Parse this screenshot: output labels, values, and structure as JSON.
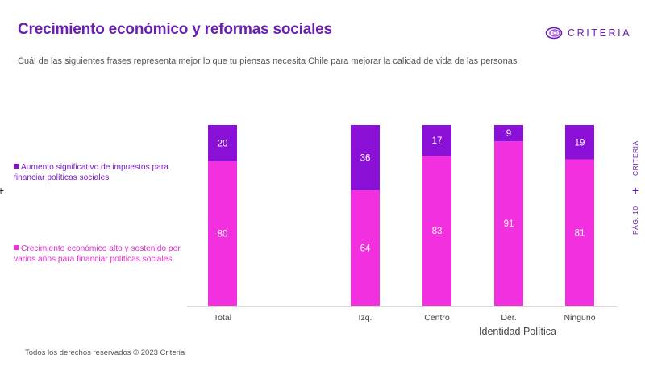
{
  "header": {
    "title": "Crecimiento económico y reformas sociales",
    "subtitle": "Cuál de las siguientes frases representa mejor lo que tu piensas necesita Chile para mejorar la calidad de vida de las personas"
  },
  "brand": {
    "logo_text": "CRITERIA",
    "color": "#6b1fb1"
  },
  "side": {
    "brand": "CRITERIA",
    "page": "PÁG. 10"
  },
  "footer": {
    "text": "Todos los derechos reservados © 2023 Criteria"
  },
  "chart_data": {
    "type": "bar",
    "stacked": true,
    "categories": [
      "Total",
      "Izq.",
      "Centro",
      "Der.",
      "Ninguno"
    ],
    "series": [
      {
        "name": "Crecimiento económico alto y sostenido por varios años para financiar políticas sociales",
        "color": "#f230df",
        "values": [
          80,
          64,
          83,
          91,
          81
        ]
      },
      {
        "name": "Aumento significativo de impuestos para financiar políticas sociales",
        "color": "#8a10d8",
        "values": [
          20,
          36,
          17,
          9,
          19
        ]
      }
    ],
    "xlabel": "Identidad Política",
    "ylabel": "",
    "ylim": [
      0,
      100
    ],
    "legend_position": "left"
  }
}
